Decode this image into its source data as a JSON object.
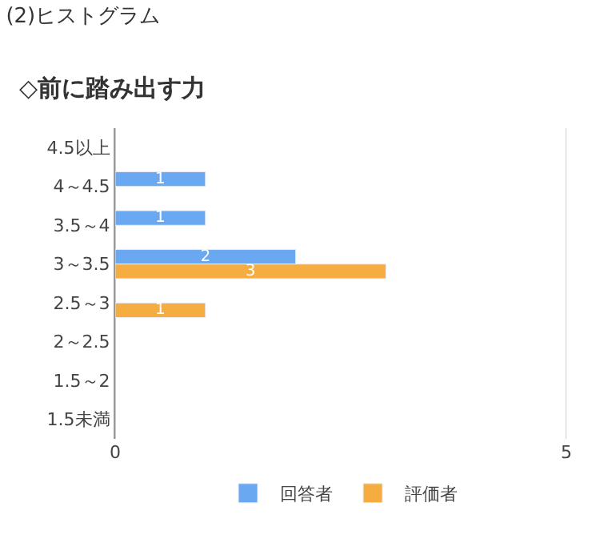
{
  "chart_data": {
    "type": "bar",
    "orientation": "horizontal",
    "title": "(2)ヒストグラム",
    "subtitle": "◇前に踏み出す力",
    "categories": [
      "4.5以上",
      "4～4.5",
      "3.5～4",
      "3～3.5",
      "2.5～3",
      "2～2.5",
      "1.5～2",
      "1.5未満"
    ],
    "series": [
      {
        "name": "回答者",
        "color": "#6aa8f2",
        "values": [
          null,
          1,
          1,
          2,
          null,
          null,
          null,
          null
        ]
      },
      {
        "name": "評価者",
        "color": "#f5ad42",
        "values": [
          null,
          null,
          null,
          3,
          1,
          null,
          null,
          null
        ]
      }
    ],
    "xlim": [
      0,
      5
    ],
    "xticks": [
      0,
      5
    ],
    "grid": "x",
    "legend": "bottom",
    "data_labels": true
  }
}
